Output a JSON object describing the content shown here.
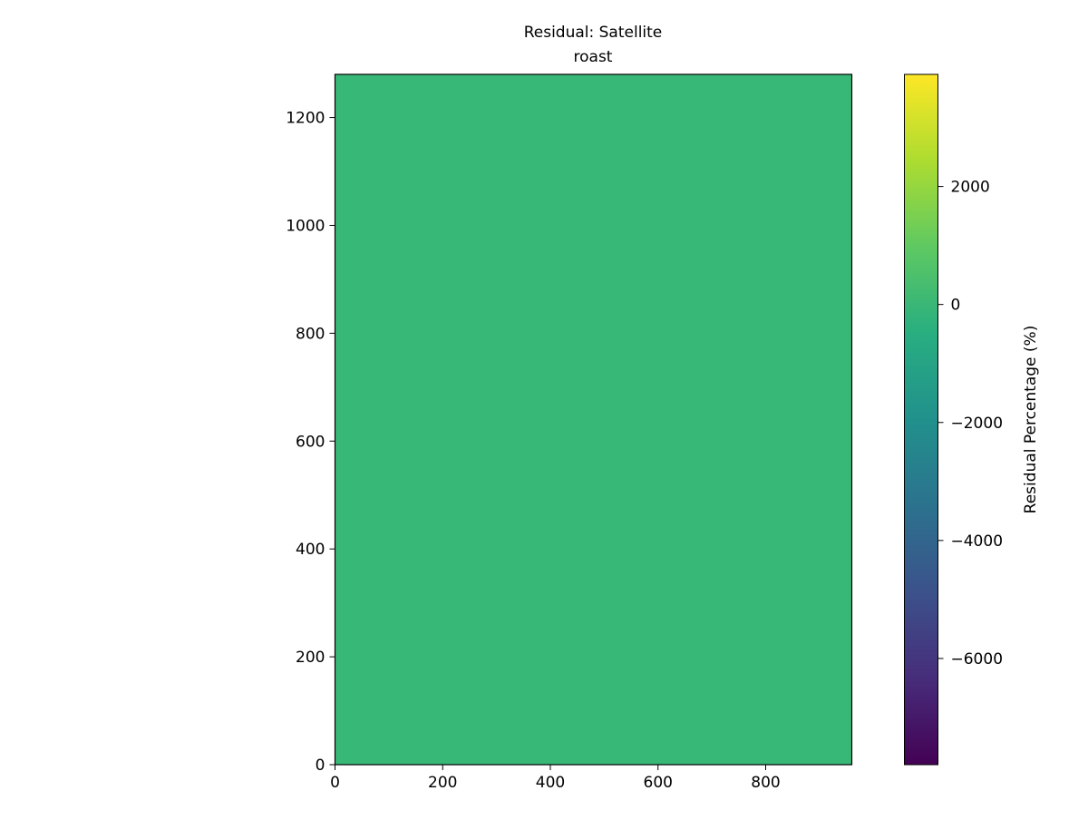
{
  "chart_data": {
    "type": "heatmap",
    "title": "Residual: Satellite",
    "subtitle": "roast",
    "xlabel": "",
    "ylabel": "",
    "xlim": [
      0,
      960
    ],
    "ylim": [
      0,
      1280
    ],
    "x_ticks": [
      0,
      200,
      400,
      600,
      800
    ],
    "y_ticks": [
      0,
      200,
      400,
      600,
      800,
      1000,
      1200
    ],
    "grid": false,
    "field_value": 0,
    "field_color": "#38b877",
    "colorbar": {
      "label": "Residual Percentage (%)",
      "colormap": "viridis",
      "range": [
        -7800,
        3900
      ],
      "ticks": [
        2000,
        0,
        -2000,
        -4000,
        -6000
      ],
      "tick_labels": [
        "2000",
        "0",
        "−2000",
        "−4000",
        "−6000"
      ]
    }
  }
}
